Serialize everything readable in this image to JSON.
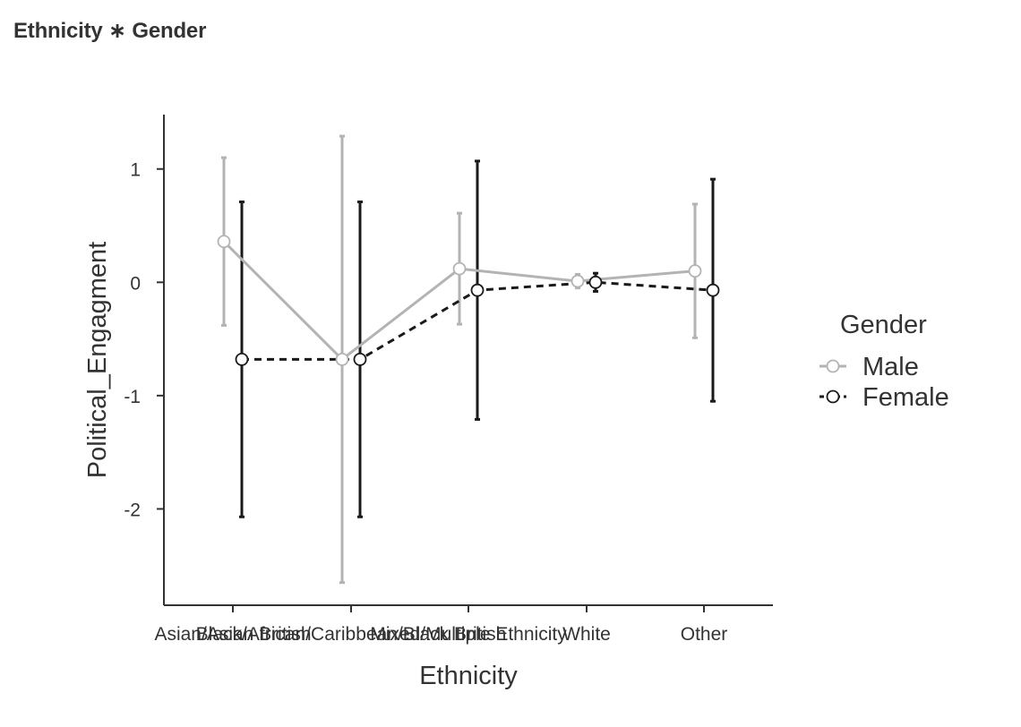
{
  "title": "Ethnicity ∗ Gender",
  "chart_data": {
    "type": "line",
    "xlabel": "Ethnicity",
    "ylabel": "Political_Engagment",
    "categories": [
      "Asian/Asian British",
      "Black/African/Caribbean/Black British",
      "Mixed/Multiple Ethnicity",
      "White",
      "Other"
    ],
    "ylim": [
      -2.85,
      1.48
    ],
    "yticks": [
      1,
      0,
      -1,
      -2
    ],
    "grid": false,
    "legend": {
      "title": "Gender",
      "placement": "right"
    },
    "series": [
      {
        "name": "Male",
        "color": "#b3b3b3",
        "dash": "solid",
        "values": [
          0.36,
          -0.68,
          0.12,
          0.01,
          0.1
        ],
        "ci_low": [
          -0.38,
          -2.65,
          -0.37,
          -0.05,
          -0.49
        ],
        "ci_high": [
          1.1,
          1.29,
          0.61,
          0.07,
          0.69
        ]
      },
      {
        "name": "Female",
        "color": "#1a1a1a",
        "dash": "dashed",
        "values": [
          -0.68,
          -0.68,
          -0.07,
          0.0,
          -0.07
        ],
        "ci_low": [
          -2.07,
          -2.07,
          -1.21,
          -0.08,
          -1.05
        ],
        "ci_high": [
          0.71,
          0.71,
          1.07,
          0.08,
          0.91
        ]
      }
    ]
  }
}
